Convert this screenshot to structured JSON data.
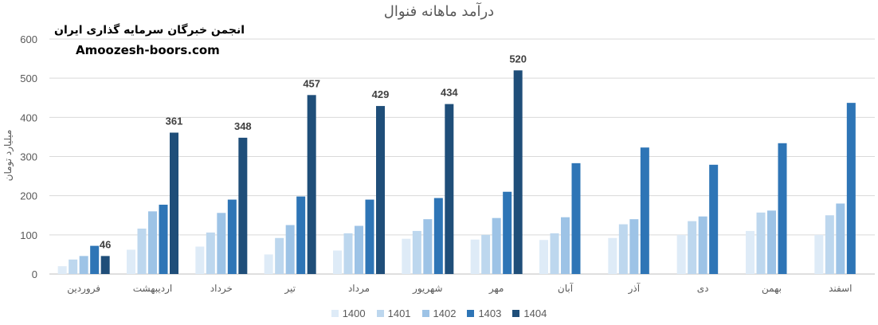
{
  "chart_data": {
    "type": "bar",
    "title": "درآمد ماهانه فنوال",
    "ylabel": "میلیارد تومان",
    "xlabel": "",
    "ylim": [
      0,
      600
    ],
    "yticks": [
      0,
      100,
      200,
      300,
      400,
      500,
      600
    ],
    "grid": true,
    "legend_position": "bottom",
    "categories": [
      "فروردین",
      "اردیبهشت",
      "خرداد",
      "تیر",
      "مرداد",
      "شهریور",
      "مهر",
      "آبان",
      "آذر",
      "دی",
      "بهمن",
      "اسفند"
    ],
    "series": [
      {
        "name": "1400",
        "color": "#deebf7",
        "values": [
          20,
          62,
          70,
          50,
          60,
          90,
          88,
          87,
          92,
          100,
          110,
          100
        ]
      },
      {
        "name": "1401",
        "color": "#bdd7ee",
        "values": [
          37,
          116,
          106,
          92,
          104,
          110,
          100,
          104,
          127,
          135,
          157,
          150
        ]
      },
      {
        "name": "1402",
        "color": "#9dc3e6",
        "values": [
          46,
          160,
          156,
          125,
          123,
          140,
          143,
          145,
          140,
          147,
          162,
          180
        ]
      },
      {
        "name": "1403",
        "color": "#2e75b6",
        "values": [
          72,
          177,
          190,
          198,
          190,
          194,
          210,
          283,
          323,
          279,
          334,
          437
        ]
      },
      {
        "name": "1404",
        "color": "#1f4e79",
        "values": [
          46,
          361,
          348,
          457,
          429,
          434,
          520,
          null,
          null,
          null,
          null,
          null
        ]
      }
    ],
    "data_labels": {
      "series": "1404",
      "values": [
        46,
        361,
        348,
        457,
        429,
        434,
        520
      ]
    }
  },
  "watermark": {
    "line1": "انجمن خبرگان سرمایه گذاری ایران",
    "line2": "Amoozesh-boors.com"
  }
}
